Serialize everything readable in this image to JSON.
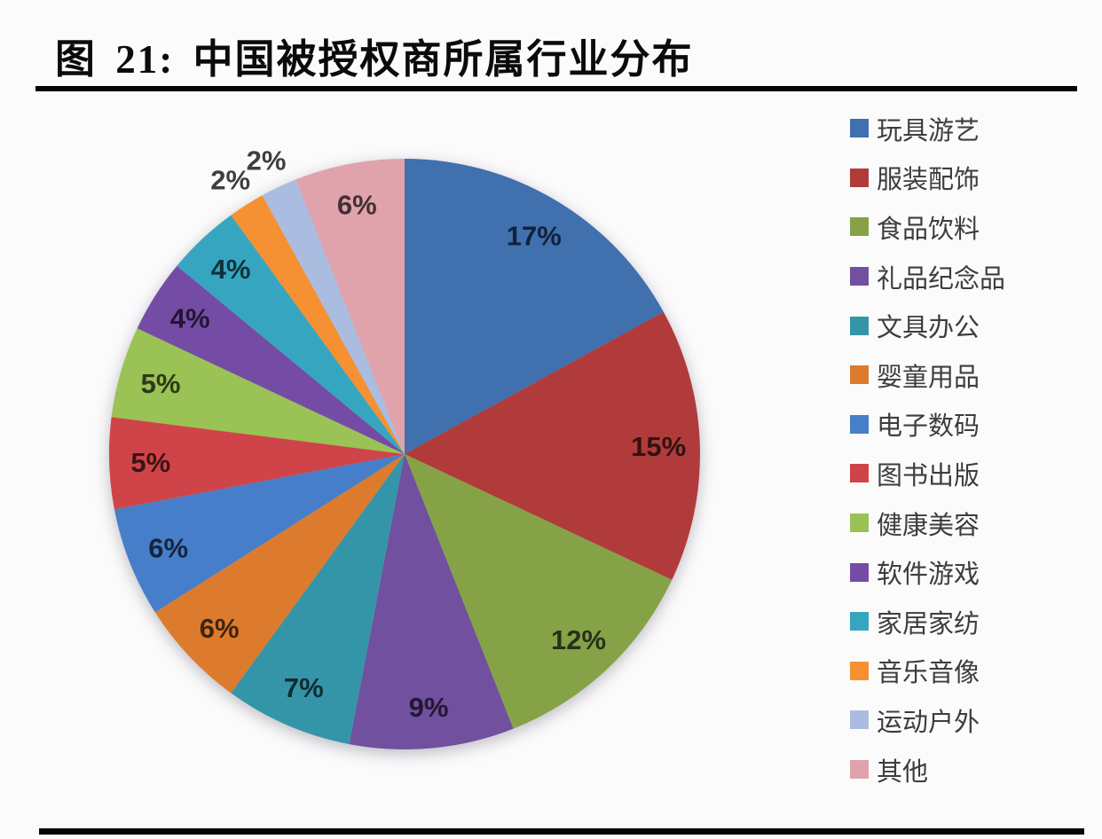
{
  "page": {
    "background": "#fcfbfc"
  },
  "header": {
    "title": "图 21: 中国被授权商所属行业分布"
  },
  "rules": {
    "title_rule_color": "#050505",
    "bottom_rule_color": "#050505"
  },
  "chart_data": {
    "type": "pie",
    "title": "图 21: 中国被授权商所属行业分布",
    "unit": "%",
    "start_angle_deg": 0,
    "direction": "clockwise",
    "legend_position": "right",
    "slices": [
      {
        "label": "玩具游艺",
        "value": 17,
        "color": "#4070ae",
        "label_color": "#122338",
        "label_outside": false
      },
      {
        "label": "服装配饰",
        "value": 15,
        "color": "#b13b3b",
        "label_color": "#331112",
        "label_outside": false
      },
      {
        "label": "食品饮料",
        "value": 12,
        "color": "#85a346",
        "label_color": "#27301a",
        "label_outside": false
      },
      {
        "label": "礼品纪念品",
        "value": 9,
        "color": "#71509f",
        "label_color": "#221831",
        "label_outside": false
      },
      {
        "label": "文具办公",
        "value": 7,
        "color": "#3595a8",
        "label_color": "#0f2c32",
        "label_outside": false
      },
      {
        "label": "婴童用品",
        "value": 6,
        "color": "#dc7b2e",
        "label_color": "#41240d",
        "label_outside": false
      },
      {
        "label": "电子数码",
        "value": 6,
        "color": "#477ec9",
        "label_color": "#15253c",
        "label_outside": false
      },
      {
        "label": "图书出版",
        "value": 5,
        "color": "#cf4448",
        "label_color": "#3d1415",
        "label_outside": false
      },
      {
        "label": "健康美容",
        "value": 5,
        "color": "#9ac254",
        "label_color": "#2d3a19",
        "label_outside": false
      },
      {
        "label": "软件游戏",
        "value": 4,
        "color": "#744ca6",
        "label_color": "#221632",
        "label_outside": false
      },
      {
        "label": "家居家纺",
        "value": 4,
        "color": "#36a6c0",
        "label_color": "#10313a",
        "label_outside": false
      },
      {
        "label": "音乐音像",
        "value": 2,
        "color": "#f59133",
        "label_color": "#3f3f3f",
        "label_outside": true
      },
      {
        "label": "运动户外",
        "value": 2,
        "color": "#aabde0",
        "label_color": "#3f3f3f",
        "label_outside": true
      },
      {
        "label": "其他",
        "value": 6,
        "color": "#e0a3ac",
        "label_color": "#433034",
        "label_outside": false
      }
    ]
  }
}
